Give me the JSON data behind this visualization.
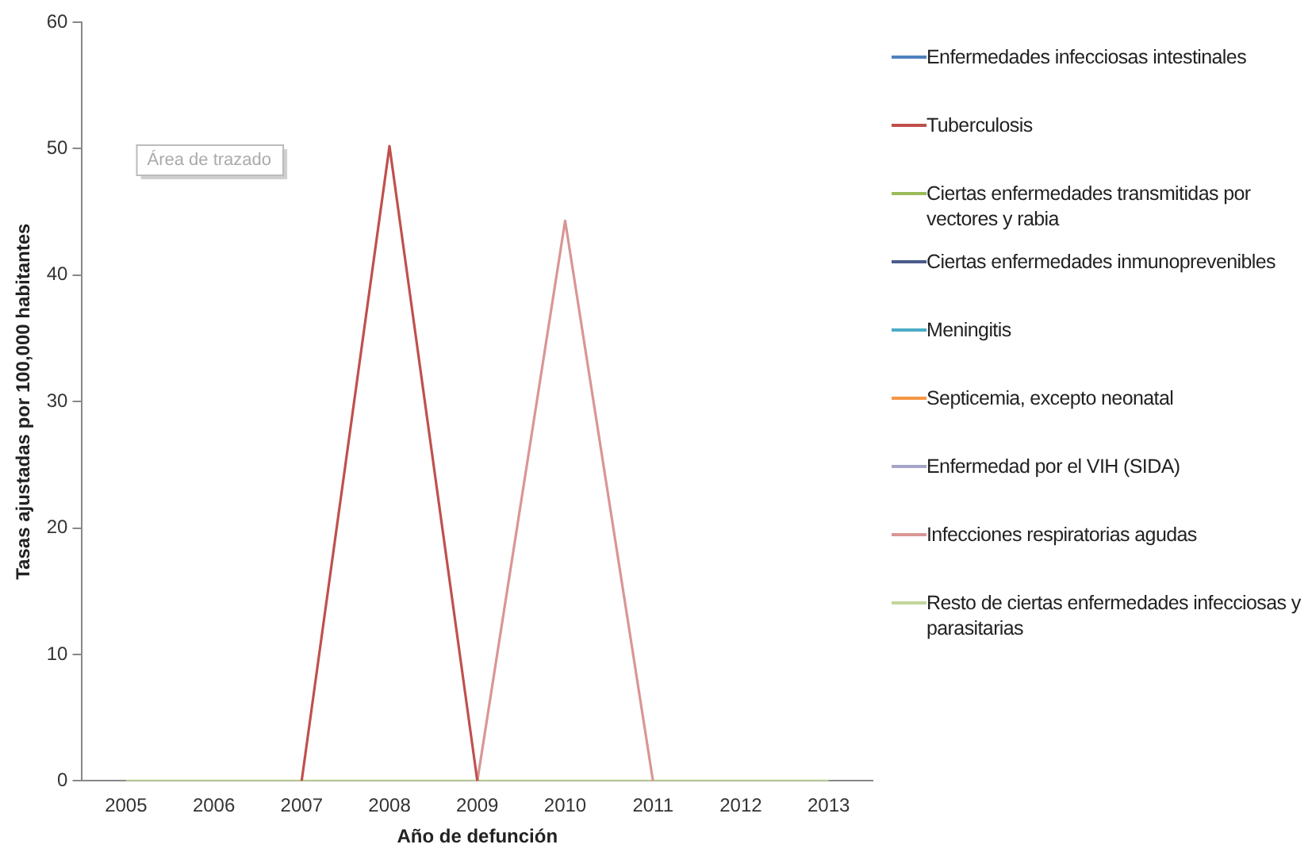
{
  "chart_data": {
    "type": "line",
    "xlabel": "Año de defunción",
    "ylabel": "Tasas ajustadas por 100,000 habitantes",
    "categories": [
      "2005",
      "2006",
      "2007",
      "2008",
      "2009",
      "2010",
      "2011",
      "2012",
      "2013"
    ],
    "series": [
      {
        "name": "Enfermedades infecciosas intestinales",
        "color": "#4f81bd",
        "values": [
          null,
          null,
          null,
          null,
          null,
          null,
          null,
          null,
          null
        ]
      },
      {
        "name": "Tuberculosis",
        "color": "#c0504d",
        "values": [
          null,
          null,
          0,
          50.2,
          0,
          null,
          null,
          null,
          null
        ]
      },
      {
        "name": "Ciertas enfermedades transmitidas por vectores y rabia",
        "color": "#9bbb59",
        "values": [
          null,
          null,
          null,
          null,
          null,
          null,
          null,
          null,
          null
        ]
      },
      {
        "name": "Ciertas enfermedades inmunoprevenibles",
        "color": "#4a5a8c",
        "values": [
          null,
          null,
          null,
          null,
          null,
          null,
          null,
          null,
          null
        ]
      },
      {
        "name": "Meningitis",
        "color": "#4bacc6",
        "values": [
          null,
          null,
          null,
          null,
          null,
          null,
          null,
          null,
          null
        ]
      },
      {
        "name": "Septicemia, excepto neonatal",
        "color": "#f79646",
        "values": [
          null,
          null,
          null,
          null,
          null,
          null,
          null,
          null,
          null
        ]
      },
      {
        "name": "Enfermedad por el VIH (SIDA)",
        "color": "#a5a5c8",
        "values": [
          null,
          null,
          null,
          null,
          null,
          null,
          null,
          null,
          null
        ]
      },
      {
        "name": "Infecciones respiratorias agudas",
        "color": "#d99694",
        "values": [
          null,
          null,
          null,
          null,
          0,
          44.3,
          0,
          null,
          null
        ]
      },
      {
        "name": "Resto de ciertas enfermedades infecciosas y parasitarias",
        "color": "#c3d69b",
        "values": [
          0,
          0,
          0,
          0,
          0,
          0,
          0,
          0,
          0
        ]
      }
    ],
    "ylim": [
      0,
      60
    ],
    "yticks": [
      0,
      10,
      20,
      30,
      40,
      50,
      60
    ],
    "grid": false,
    "legend": "right",
    "marker": "none",
    "line_style": "solid",
    "annotations": [
      "Área de trazado"
    ]
  }
}
